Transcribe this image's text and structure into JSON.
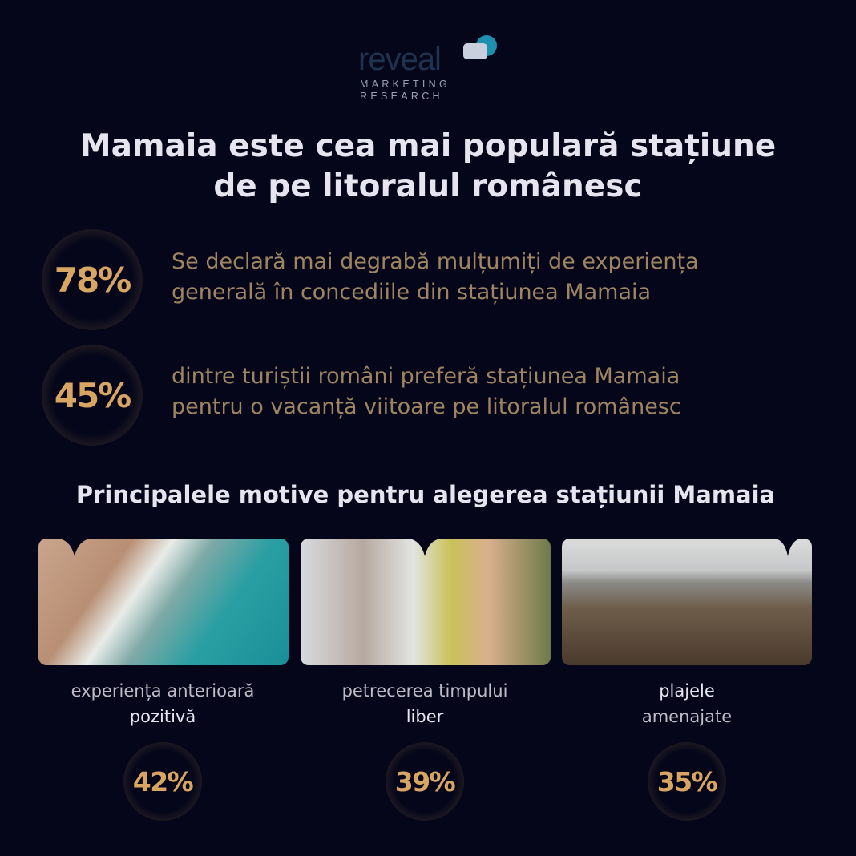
{
  "logo": {
    "word": "reveal",
    "line1": "MARKETING",
    "line2": "RESEARCH"
  },
  "title": {
    "line1": "Mamaia este cea mai populară stațiune",
    "line2": "de pe litoralul românesc"
  },
  "stats": [
    {
      "value": "78%",
      "line1": "Se declară mai degrabă mulțumiți de experiența",
      "line2": "generală în concediile din stațiunea Mamaia"
    },
    {
      "value": "45%",
      "line1": "dintre turiștii români preferă stațiunea Mamaia",
      "line2": "pentru o vacanță viitoare pe litoralul românesc"
    }
  ],
  "section_title": "Principalele motive pentru alegerea stațiunii Mamaia",
  "reasons": [
    {
      "line1": "experiența anterioară",
      "line2": "pozitivă",
      "value": "42%",
      "image": "aerial-beach-photo"
    },
    {
      "line1": "petrecerea timpului",
      "line2": "liber",
      "value": "39%",
      "image": "cocktail-photo"
    },
    {
      "line1": "plajele",
      "line2": "amenajate",
      "value": "35%",
      "image": "beach-umbrellas-photo"
    }
  ],
  "colors": {
    "background": "#05061a",
    "gold": "#d8a562",
    "stat_text": "#9f8462",
    "heading": "#e6e4ee"
  }
}
